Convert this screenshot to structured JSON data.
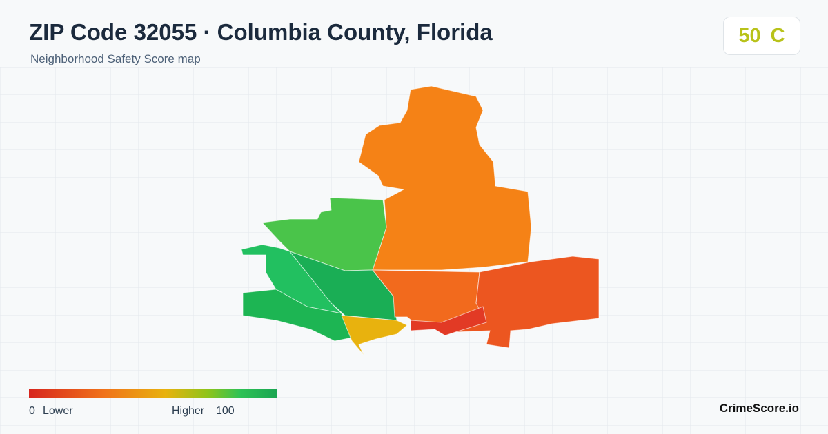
{
  "header": {
    "title": "ZIP Code 32055 · Columbia County, Florida",
    "subtitle": "Neighborhood Safety Score map"
  },
  "score": {
    "value": 50,
    "grade": "C"
  },
  "legend": {
    "min": 0,
    "min_label": "Lower",
    "max_label": "Higher",
    "max": 100
  },
  "brand": "CrimeScore.io"
}
